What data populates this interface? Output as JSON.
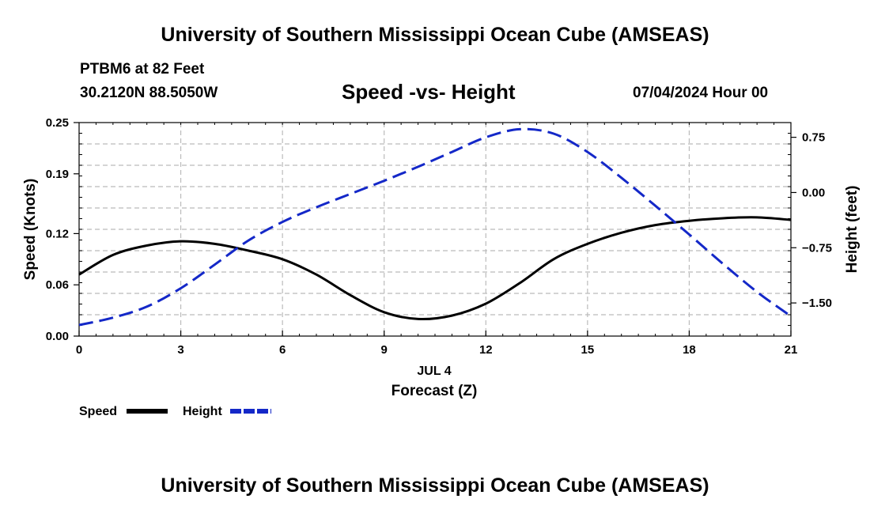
{
  "header": {
    "title": "University of Southern Mississippi Ocean Cube (AMSEAS)",
    "station": "PTBM6 at 82 Feet",
    "location": "30.2120N  88.5050W",
    "date": "07/04/2024 Hour 00",
    "footer_title": "University of Southern Mississippi Ocean Cube (AMSEAS)"
  },
  "colors": {
    "speed": "#000000",
    "height": "#1428c8",
    "grid": "#bbbbbb"
  },
  "chart_data": {
    "type": "line",
    "title": "Speed -vs- Height",
    "xlabel": "Forecast (Z)",
    "xsublabel": "JUL 4",
    "ylabel": "Speed (Knots)",
    "y2label": "Height (feet)",
    "xlim": [
      0,
      21
    ],
    "ylim": [
      0,
      0.25
    ],
    "y2lim": [
      -1.95,
      0.95
    ],
    "xticks": [
      0,
      3,
      6,
      9,
      12,
      15,
      18,
      21
    ],
    "xtick_labels": [
      "0",
      "3",
      "6",
      "9",
      "12",
      "15",
      "18",
      "21"
    ],
    "yticks": [
      0.0,
      0.06,
      0.12,
      0.19,
      0.25
    ],
    "ytick_labels": [
      "0.00",
      "0.06",
      "0.12",
      "0.19",
      "0.25"
    ],
    "y2ticks": [
      0.75,
      0.0,
      -0.75,
      -1.5
    ],
    "y2tick_labels": [
      "0.75",
      "0.00",
      "−0.75",
      "−1.50"
    ],
    "grid": true,
    "series": [
      {
        "name": "Speed",
        "axis": "left",
        "style": "solid",
        "x": [
          0,
          1,
          2,
          3,
          4,
          5,
          6,
          7,
          8,
          9,
          10,
          11,
          12,
          13,
          14,
          15,
          16,
          17,
          18,
          19,
          20,
          21
        ],
        "values": [
          0.072,
          0.095,
          0.106,
          0.111,
          0.108,
          0.1,
          0.09,
          0.072,
          0.048,
          0.028,
          0.02,
          0.024,
          0.038,
          0.062,
          0.09,
          0.108,
          0.121,
          0.13,
          0.135,
          0.138,
          0.139,
          0.136
        ]
      },
      {
        "name": "Height",
        "axis": "right",
        "style": "dashed",
        "x": [
          0,
          1,
          2,
          3,
          4,
          5,
          6,
          7,
          8,
          9,
          10,
          11,
          12,
          13,
          14,
          15,
          16,
          17,
          18,
          19,
          20,
          21
        ],
        "values": [
          -1.8,
          -1.7,
          -1.55,
          -1.3,
          -0.98,
          -0.65,
          -0.4,
          -0.2,
          -0.02,
          0.16,
          0.35,
          0.55,
          0.75,
          0.86,
          0.8,
          0.55,
          0.2,
          -0.18,
          -0.57,
          -0.97,
          -1.35,
          -1.68
        ]
      }
    ]
  },
  "legend": {
    "speed_label": "Speed",
    "height_label": "Height"
  }
}
